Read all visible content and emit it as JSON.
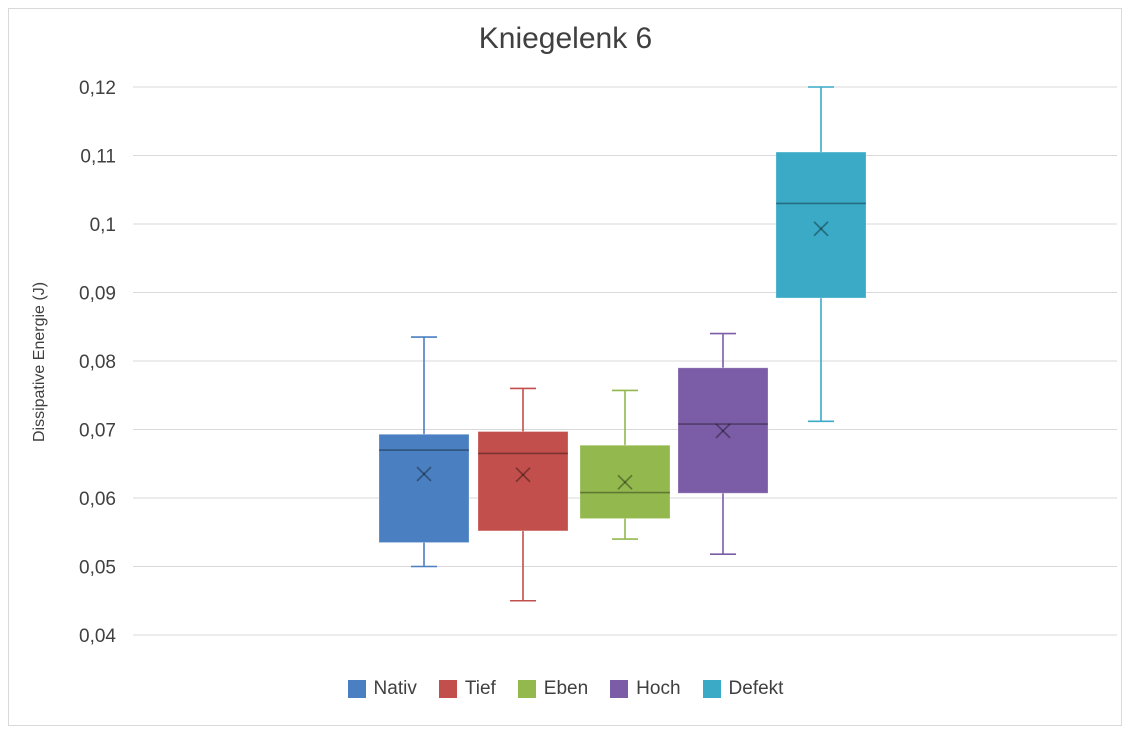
{
  "chart_data": {
    "type": "boxplot",
    "title": "Kniegelenk 6",
    "ylabel": "Dissipative Energie (J)",
    "xlabel": "",
    "ylim": [
      0.04,
      0.12
    ],
    "yticks": [
      "0,04",
      "0,05",
      "0,06",
      "0,07",
      "0,08",
      "0,09",
      "0,1",
      "0,11",
      "0,12"
    ],
    "grid": true,
    "legend_position": "bottom",
    "series": [
      {
        "name": "Nativ",
        "color": "#4a7fc1",
        "min": 0.05,
        "q1": 0.0535,
        "median": 0.067,
        "q3": 0.0693,
        "max": 0.0835,
        "mean": 0.0635
      },
      {
        "name": "Tief",
        "color": "#c24f4c",
        "min": 0.045,
        "q1": 0.0552,
        "median": 0.0665,
        "q3": 0.0697,
        "max": 0.076,
        "mean": 0.0634
      },
      {
        "name": "Eben",
        "color": "#93b84e",
        "min": 0.054,
        "q1": 0.057,
        "median": 0.0608,
        "q3": 0.0677,
        "max": 0.0757,
        "mean": 0.0623
      },
      {
        "name": "Hoch",
        "color": "#7b5ca6",
        "min": 0.0518,
        "q1": 0.0607,
        "median": 0.0708,
        "q3": 0.079,
        "max": 0.084,
        "mean": 0.0698
      },
      {
        "name": "Defekt",
        "color": "#3aaac6",
        "min": 0.0712,
        "q1": 0.0892,
        "median": 0.103,
        "q3": 0.1105,
        "max": 0.12,
        "mean": 0.0993
      }
    ]
  }
}
